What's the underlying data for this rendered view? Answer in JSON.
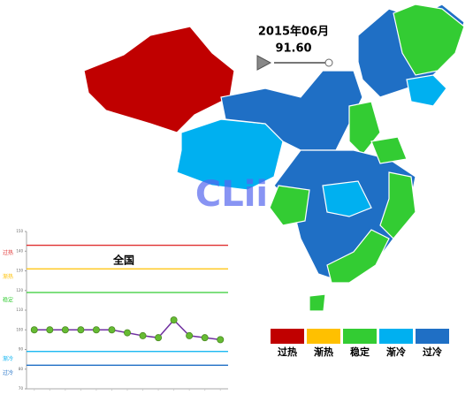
{
  "slider": {
    "date": "2015年06月",
    "value": "91.60"
  },
  "logo": "CLii",
  "legend": [
    {
      "label": "过热",
      "color": "#c00000"
    },
    {
      "label": "渐热",
      "color": "#ffc000"
    },
    {
      "label": "稳定",
      "color": "#33cc33"
    },
    {
      "label": "渐冷",
      "color": "#00b0f0"
    },
    {
      "label": "过冷",
      "color": "#1f6fc5"
    }
  ],
  "chart_data": {
    "type": "line",
    "title": "全国",
    "categories": [
      null,
      null,
      null,
      null,
      null,
      null,
      null,
      null,
      null,
      null,
      null,
      null,
      null
    ],
    "series": [
      {
        "color": "#7030a0",
        "marker_color": "#66bb33",
        "values": [
          100,
          100,
          100,
          100,
          100,
          100,
          98.5,
          97,
          96,
          105,
          97,
          96,
          95
        ]
      }
    ],
    "ylim": [
      70,
      150
    ],
    "yticks": [
      70,
      80,
      90,
      100,
      110,
      120,
      130,
      140,
      150
    ],
    "levels": [
      {
        "label": "过热",
        "value": 143,
        "color": "#e03030"
      },
      {
        "label": "渐热",
        "value": 131,
        "color": "#ffc000"
      },
      {
        "label": "稳定",
        "value": 119,
        "color": "#33cc33"
      },
      {
        "label": "渐冷",
        "value": 89,
        "color": "#00b0f0"
      },
      {
        "label": "过冷",
        "value": 82,
        "color": "#1f6fc5"
      }
    ]
  }
}
